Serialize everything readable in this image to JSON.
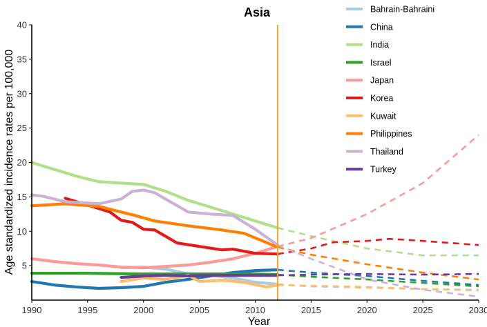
{
  "chart_data": {
    "type": "line",
    "title": "Asia",
    "xlabel": "Year",
    "ylabel": "Age standardized incidence rates per 100,000",
    "xlim": [
      1990,
      2030
    ],
    "ylim": [
      0,
      40
    ],
    "xticks": [
      "1990",
      "1995",
      "2000",
      "2005",
      "2010",
      "2015",
      "2020",
      "2025",
      "2030"
    ],
    "yticks": [
      "5",
      "10",
      "15",
      "20",
      "25",
      "30",
      "35",
      "40"
    ],
    "cutoff_year": 2012,
    "cutoff_color": "#F5A623",
    "grid": false,
    "legend_position": "right",
    "series": [
      {
        "name": "Bahrain-Bahraini",
        "color": "#A6CEE3",
        "observed": [
          [
            1998,
            4.7
          ],
          [
            2000,
            4.8
          ],
          [
            2002,
            4.5
          ],
          [
            2004,
            3.8
          ],
          [
            2006,
            3.6
          ],
          [
            2008,
            3.2
          ],
          [
            2010,
            2.6
          ],
          [
            2012,
            2.3
          ]
        ],
        "projected": [
          [
            2012,
            2.3
          ],
          [
            2015,
            2.0
          ],
          [
            2020,
            1.8
          ],
          [
            2025,
            1.6
          ],
          [
            2030,
            1.5
          ]
        ]
      },
      {
        "name": "China",
        "color": "#1F78B4",
        "observed": [
          [
            1990,
            2.7
          ],
          [
            1992,
            2.2
          ],
          [
            1994,
            1.9
          ],
          [
            1996,
            1.7
          ],
          [
            1998,
            1.8
          ],
          [
            2000,
            2.0
          ],
          [
            2002,
            2.6
          ],
          [
            2004,
            3.0
          ],
          [
            2006,
            3.5
          ],
          [
            2008,
            4.0
          ],
          [
            2010,
            4.3
          ],
          [
            2012,
            4.4
          ]
        ],
        "projected": [
          [
            2012,
            4.4
          ],
          [
            2015,
            4.0
          ],
          [
            2020,
            3.5
          ],
          [
            2025,
            2.8
          ],
          [
            2030,
            2.2
          ]
        ]
      },
      {
        "name": "India",
        "color": "#B2DF8A",
        "observed": [
          [
            1990,
            20.0
          ],
          [
            1992,
            19.0
          ],
          [
            1994,
            18.0
          ],
          [
            1996,
            17.2
          ],
          [
            1998,
            17.0
          ],
          [
            2000,
            16.8
          ],
          [
            2002,
            15.8
          ],
          [
            2004,
            14.5
          ],
          [
            2006,
            13.5
          ],
          [
            2008,
            12.5
          ],
          [
            2010,
            11.5
          ],
          [
            2012,
            10.5
          ]
        ],
        "projected": [
          [
            2012,
            10.5
          ],
          [
            2015,
            9.3
          ],
          [
            2020,
            7.5
          ],
          [
            2025,
            6.5
          ],
          [
            2030,
            6.5
          ]
        ]
      },
      {
        "name": "Israel",
        "color": "#33A02C",
        "observed": [
          [
            1990,
            3.9
          ],
          [
            1995,
            3.9
          ],
          [
            2000,
            3.8
          ],
          [
            2005,
            3.8
          ],
          [
            2010,
            3.8
          ],
          [
            2012,
            3.7
          ]
        ],
        "projected": [
          [
            2012,
            3.7
          ],
          [
            2015,
            3.4
          ],
          [
            2020,
            3.0
          ],
          [
            2025,
            2.5
          ],
          [
            2030,
            2.0
          ]
        ]
      },
      {
        "name": "Japan",
        "color": "#FB9A99",
        "observed": [
          [
            1990,
            6.0
          ],
          [
            1992,
            5.6
          ],
          [
            1994,
            5.3
          ],
          [
            1996,
            5.1
          ],
          [
            1998,
            4.8
          ],
          [
            2000,
            4.7
          ],
          [
            2002,
            4.9
          ],
          [
            2004,
            5.1
          ],
          [
            2006,
            5.5
          ],
          [
            2008,
            6.0
          ],
          [
            2010,
            6.8
          ],
          [
            2012,
            7.8
          ]
        ],
        "projected": [
          [
            2012,
            7.8
          ],
          [
            2015,
            9.0
          ],
          [
            2020,
            12.5
          ],
          [
            2025,
            17.0
          ],
          [
            2030,
            24.0
          ]
        ]
      },
      {
        "name": "Korea",
        "color": "#E31A1C",
        "observed": [
          [
            1993,
            14.8
          ],
          [
            1995,
            13.8
          ],
          [
            1997,
            12.8
          ],
          [
            1998,
            11.6
          ],
          [
            1999,
            11.3
          ],
          [
            2000,
            10.3
          ],
          [
            2001,
            10.2
          ],
          [
            2003,
            8.3
          ],
          [
            2005,
            7.8
          ],
          [
            2007,
            7.3
          ],
          [
            2008,
            7.4
          ],
          [
            2010,
            6.8
          ],
          [
            2012,
            6.7
          ]
        ],
        "projected": [
          [
            2012,
            6.7
          ],
          [
            2015,
            7.5
          ],
          [
            2017,
            8.4
          ],
          [
            2020,
            8.6
          ],
          [
            2022,
            8.9
          ],
          [
            2025,
            8.6
          ],
          [
            2030,
            8.0
          ]
        ]
      },
      {
        "name": "Kuwait",
        "color": "#FDBF6F",
        "observed": [
          [
            1998,
            2.7
          ],
          [
            2000,
            3.2
          ],
          [
            2002,
            3.0
          ],
          [
            2004,
            3.6
          ],
          [
            2005,
            2.7
          ],
          [
            2007,
            2.9
          ],
          [
            2009,
            2.6
          ],
          [
            2011,
            1.9
          ],
          [
            2012,
            2.2
          ]
        ],
        "projected": [
          [
            2012,
            2.2
          ],
          [
            2015,
            2.1
          ],
          [
            2020,
            1.9
          ],
          [
            2025,
            1.6
          ],
          [
            2030,
            1.4
          ]
        ]
      },
      {
        "name": "Philippines",
        "color": "#FF7F00",
        "observed": [
          [
            1990,
            13.7
          ],
          [
            1993,
            14.0
          ],
          [
            1996,
            13.6
          ],
          [
            1999,
            12.4
          ],
          [
            2001,
            11.5
          ],
          [
            2004,
            10.8
          ],
          [
            2007,
            10.2
          ],
          [
            2009,
            9.7
          ],
          [
            2012,
            7.7
          ]
        ],
        "projected": [
          [
            2012,
            7.7
          ],
          [
            2015,
            6.6
          ],
          [
            2020,
            5.2
          ],
          [
            2025,
            4.0
          ],
          [
            2030,
            3.0
          ]
        ]
      },
      {
        "name": "Thailand",
        "color": "#CAB2D6",
        "observed": [
          [
            1990,
            15.3
          ],
          [
            1991,
            15.1
          ],
          [
            1993,
            14.3
          ],
          [
            1996,
            14.0
          ],
          [
            1998,
            14.7
          ],
          [
            1999,
            15.8
          ],
          [
            2000,
            16.0
          ],
          [
            2001,
            15.6
          ],
          [
            2004,
            12.8
          ],
          [
            2006,
            12.5
          ],
          [
            2008,
            12.3
          ],
          [
            2010,
            10.3
          ],
          [
            2012,
            8.0
          ]
        ],
        "projected": [
          [
            2012,
            8.0
          ],
          [
            2015,
            6.0
          ],
          [
            2020,
            3.0
          ],
          [
            2025,
            1.5
          ],
          [
            2030,
            0.5
          ]
        ]
      },
      {
        "name": "Turkey",
        "color": "#6A3D9A",
        "observed": [
          [
            1998,
            3.3
          ],
          [
            2000,
            3.5
          ],
          [
            2002,
            3.6
          ],
          [
            2004,
            3.5
          ],
          [
            2006,
            3.6
          ],
          [
            2008,
            3.6
          ],
          [
            2010,
            3.6
          ],
          [
            2012,
            3.6
          ]
        ],
        "projected": [
          [
            2012,
            3.6
          ],
          [
            2015,
            3.7
          ],
          [
            2020,
            3.8
          ],
          [
            2025,
            3.7
          ],
          [
            2030,
            3.8
          ]
        ]
      }
    ]
  }
}
